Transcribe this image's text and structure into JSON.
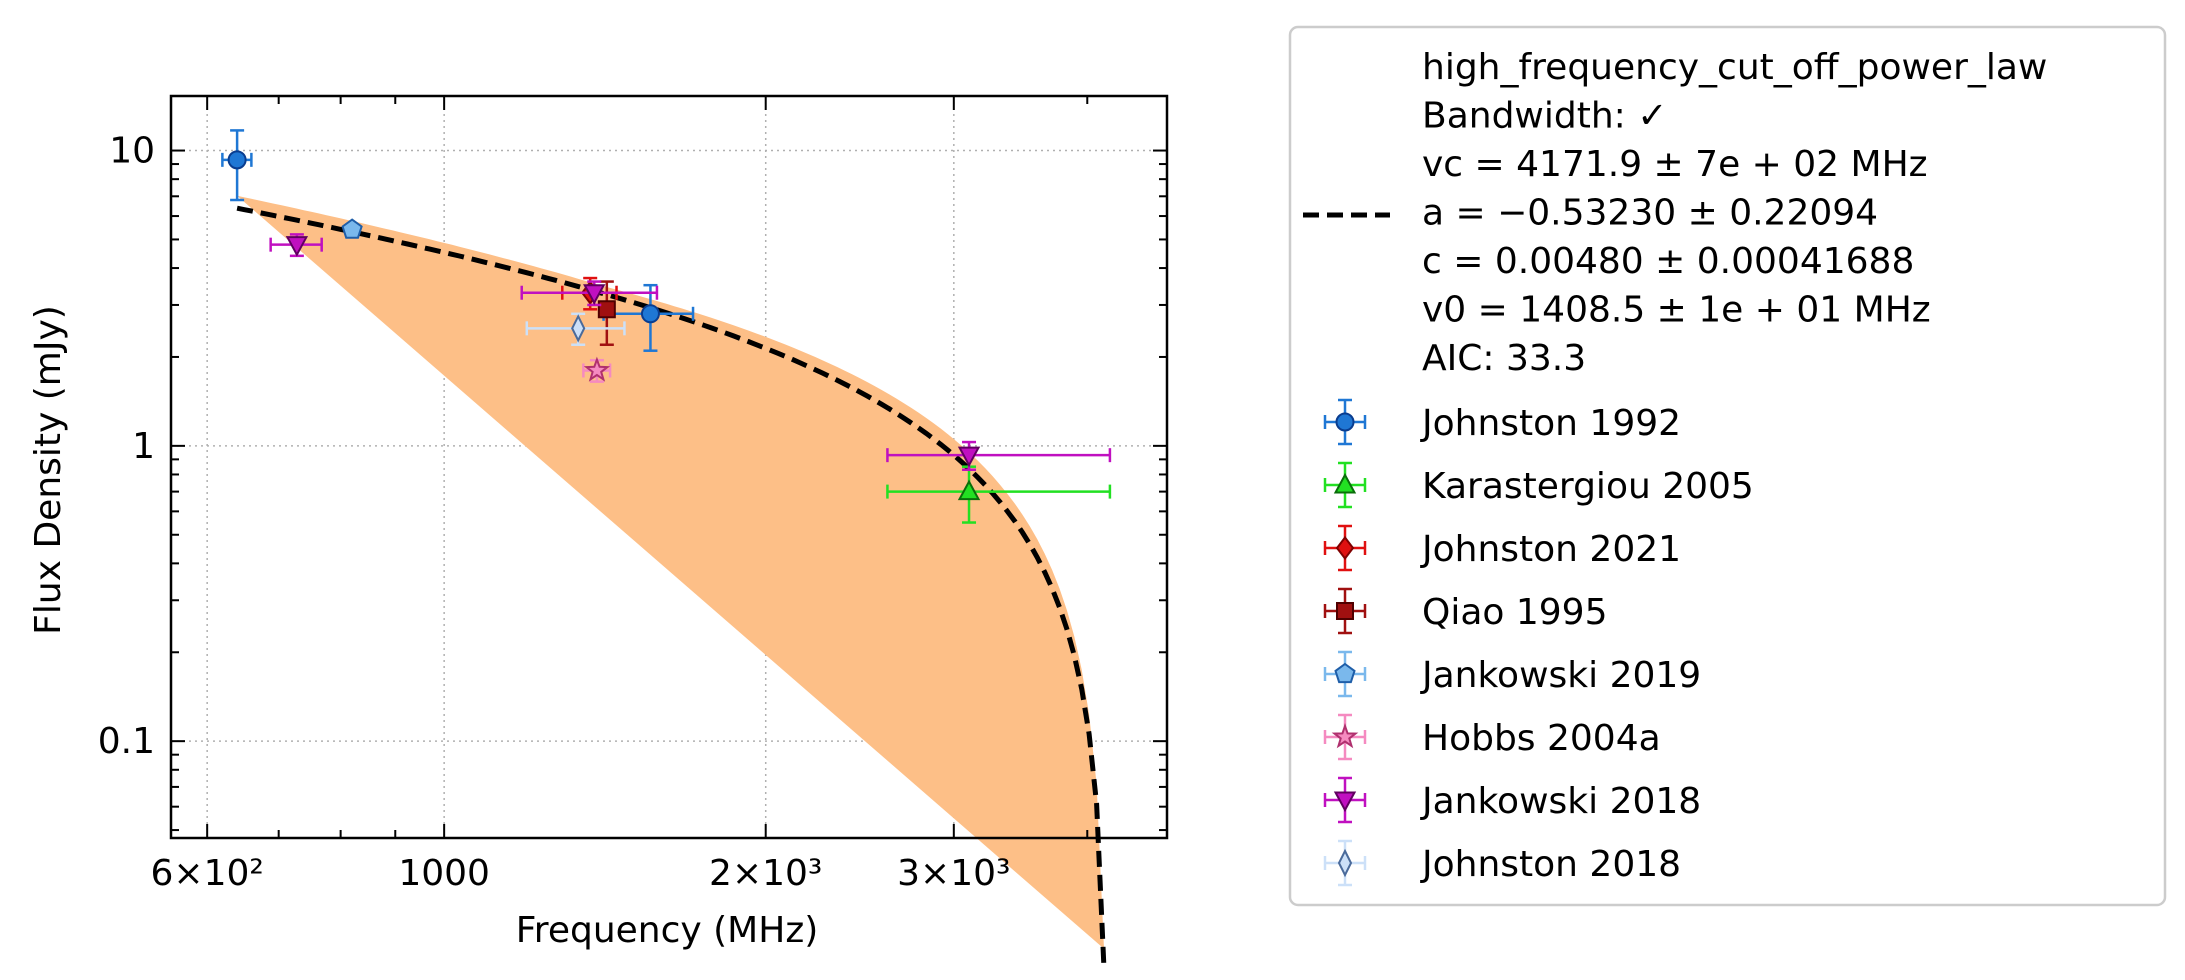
{
  "chart_data": {
    "type": "scatter",
    "xlabel": "Frequency (MHz)",
    "ylabel": "Flux Density (mJy)",
    "xscale": "log",
    "yscale": "log",
    "xlim": [
      555,
      4750
    ],
    "ylim": [
      0.047,
      15.3
    ],
    "grid": true,
    "x_ticks": [
      {
        "value": 600,
        "label": "6×10²"
      },
      {
        "value": 1000,
        "label": "1000"
      },
      {
        "value": 2000,
        "label": "2×10³"
      },
      {
        "value": 3000,
        "label": "3×10³"
      }
    ],
    "y_ticks": [
      {
        "value": 0.1,
        "label": "0.1"
      },
      {
        "value": 1,
        "label": "1"
      },
      {
        "value": 10,
        "label": "10"
      }
    ],
    "legend_position": "outside-right",
    "fit": {
      "name": "high_frequency_cut_off_power_law",
      "text_lines": [
        "high_frequency_cut_off_power_law",
        "Bandwidth: ✓",
        "vc = 4171.9 ± 7e + 02 MHz",
        "a = −0.53230 ± 0.22094",
        "c = 0.00480 ± 0.00041688",
        "v0 = 1408.5 ± 1e + 01 MHz",
        "AIC: 33.3"
      ],
      "vc": 4171.9,
      "a": -0.5323,
      "c": 0.0048,
      "v0": 1408.5,
      "x_range": [
        640,
        4350
      ],
      "line_color": "#000000",
      "band_color": "#fdbf87"
    },
    "series": [
      {
        "name": "Johnston 1992",
        "marker": "circle",
        "color": "#1f77d4",
        "edge": "#0a3d8f",
        "points": [
          {
            "x": 640,
            "y": 9.3,
            "xerr": [
              20,
              20
            ],
            "yerr": [
              2.5,
              2.4
            ]
          },
          {
            "x": 1560,
            "y": 2.8,
            "xerr": [
              150,
              150
            ],
            "yerr": [
              0.7,
              0.7
            ]
          }
        ]
      },
      {
        "name": "Karastergiou 2005",
        "marker": "triangle-up",
        "color": "#22e022",
        "edge": "#0a6e0a",
        "points": [
          {
            "x": 3100,
            "y": 0.7,
            "xerr": [
              500,
              1100
            ],
            "yerr": [
              0.15,
              0.15
            ]
          }
        ]
      },
      {
        "name": "Johnston 2021",
        "marker": "diamond",
        "color": "#e01010",
        "edge": "#800000",
        "points": [
          {
            "x": 1370,
            "y": 3.3,
            "xerr": [
              80,
              80
            ],
            "yerr": [
              0.4,
              0.4
            ]
          }
        ]
      },
      {
        "name": "Qiao 1995",
        "marker": "square",
        "color": "#a01010",
        "edge": "#500000",
        "points": [
          {
            "x": 1420,
            "y": 2.9,
            "xerr": [
              0,
              0
            ],
            "yerr": [
              0.7,
              0.7
            ]
          }
        ]
      },
      {
        "name": "Jankowski 2019",
        "marker": "pentagon",
        "color": "#7ab8ec",
        "edge": "#1f5ea8",
        "points": [
          {
            "x": 820,
            "y": 5.4,
            "xerr": [
              0,
              0
            ],
            "yerr": [
              0.2,
              0.2
            ]
          }
        ]
      },
      {
        "name": "Hobbs 2004a",
        "marker": "star",
        "color": "#f58ac0",
        "edge": "#b0306e",
        "points": [
          {
            "x": 1390,
            "y": 1.8,
            "xerr": [
              40,
              40
            ],
            "yerr": [
              0.15,
              0.15
            ]
          }
        ]
      },
      {
        "name": "Jankowski 2018",
        "marker": "triangle-down",
        "color": "#c010c0",
        "edge": "#600060",
        "points": [
          {
            "x": 728,
            "y": 4.8,
            "xerr": [
              40,
              40
            ],
            "yerr": [
              0.4,
              0.4
            ]
          },
          {
            "x": 1382,
            "y": 3.3,
            "xerr": [
              200,
              200
            ],
            "yerr": [
              0.3,
              0.3
            ]
          },
          {
            "x": 3100,
            "y": 0.93,
            "xerr": [
              500,
              1100
            ],
            "yerr": [
              0.1,
              0.1
            ]
          }
        ]
      },
      {
        "name": "Johnston 2018",
        "marker": "thin-diamond",
        "color": "#cce0f8",
        "edge": "#4a6a9a",
        "points": [
          {
            "x": 1335,
            "y": 2.5,
            "xerr": [
              140,
              140
            ],
            "yerr": [
              0.3,
              0.3
            ]
          }
        ]
      }
    ]
  }
}
